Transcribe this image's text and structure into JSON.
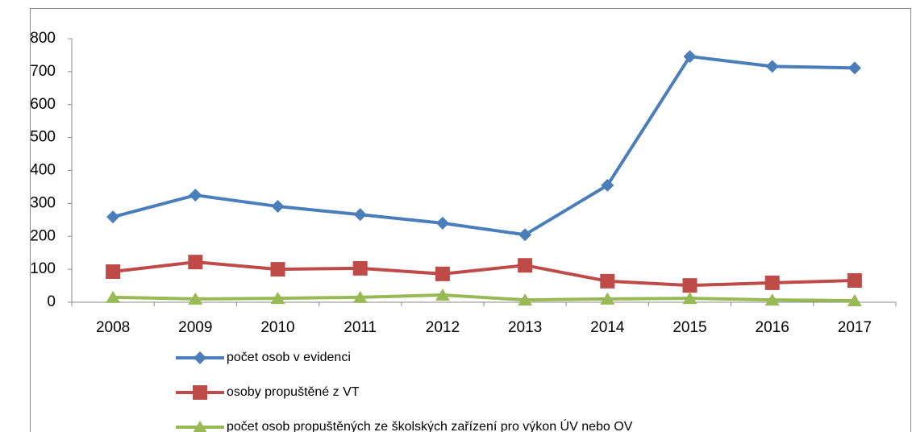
{
  "chart_data": {
    "type": "line",
    "categories": [
      "2008",
      "2009",
      "2010",
      "2011",
      "2012",
      "2013",
      "2014",
      "2015",
      "2016",
      "2017"
    ],
    "series": [
      {
        "name": "počet osob v evidenci",
        "color": "#4a7ebb",
        "marker": "diamond",
        "values": [
          259,
          325,
          291,
          266,
          240,
          205,
          355,
          746,
          716,
          711
        ]
      },
      {
        "name": "osoby propuštěné z VT",
        "color": "#be4b48",
        "marker": "square",
        "values": [
          93,
          122,
          100,
          103,
          86,
          112,
          64,
          51,
          59,
          66
        ]
      },
      {
        "name": "počet osob propuštěných ze školských zařízení pro výkon ÚV nebo OV",
        "color": "#98b954",
        "marker": "triangle",
        "values": [
          15,
          10,
          12,
          15,
          22,
          7,
          10,
          12,
          7,
          5
        ]
      }
    ],
    "ylim": [
      0,
      800
    ],
    "yticks": [
      0,
      100,
      200,
      300,
      400,
      500,
      600,
      700,
      800
    ],
    "grid": false,
    "legend": "bottom"
  }
}
